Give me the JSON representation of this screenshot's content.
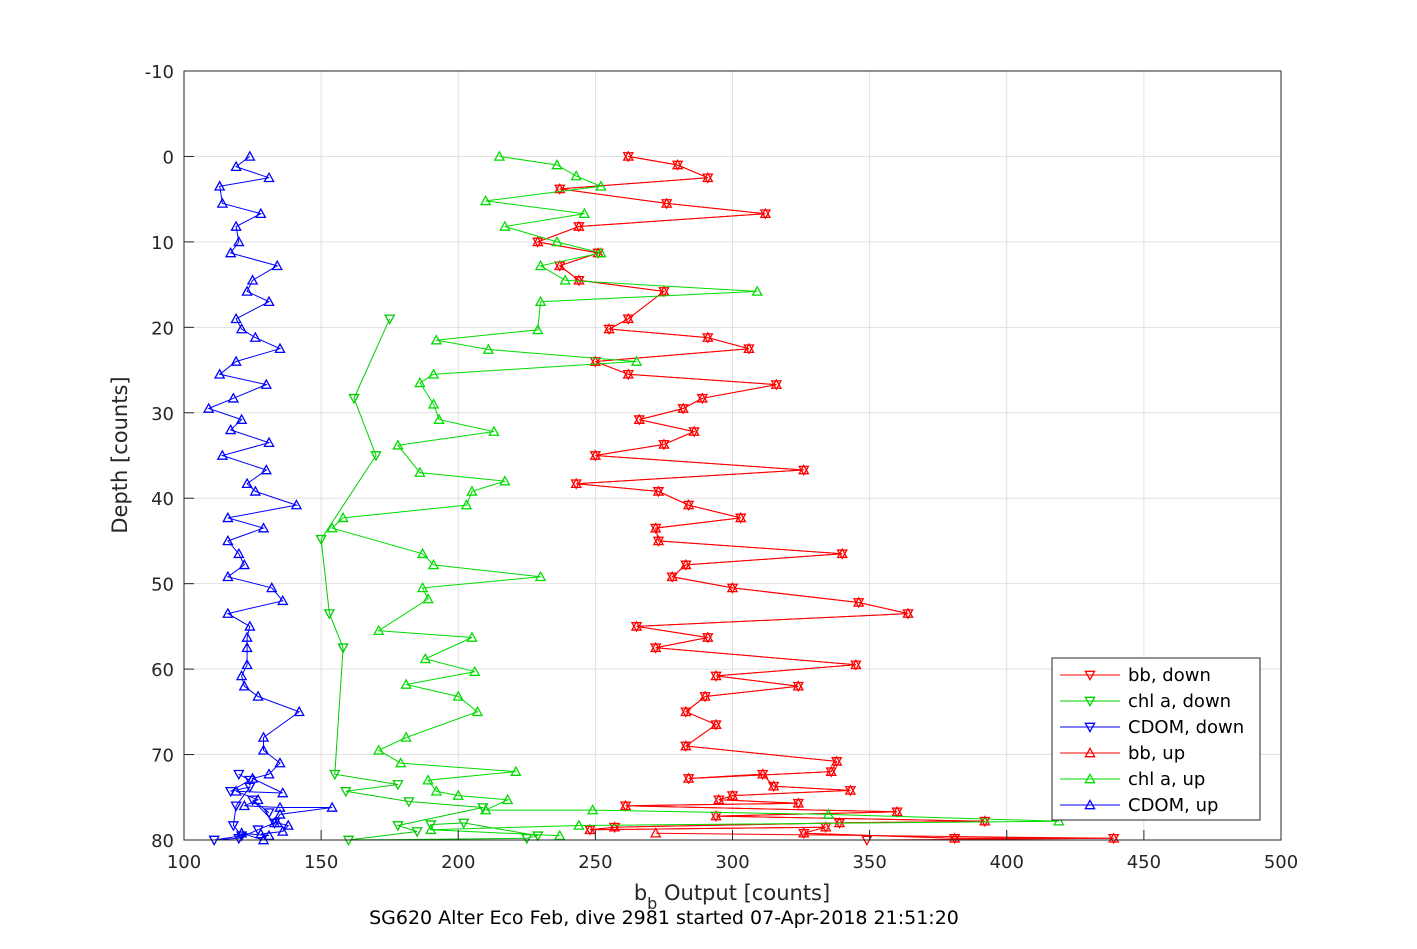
{
  "chart_data": {
    "type": "line",
    "title": "",
    "xlabel": {
      "main": "b",
      "sub": "b",
      "rest": " Output [counts]"
    },
    "ylabel": "Depth [counts]",
    "footer": "SG620 Alter Eco Feb, dive 2981 started 07-Apr-2018 21:51:20",
    "xlim": [
      100,
      500
    ],
    "ylim": [
      -10,
      80
    ],
    "y_reversed": true,
    "grid": true,
    "legend_position": "bottom-right",
    "x_ticks": [
      "100",
      "150",
      "200",
      "250",
      "300",
      "350",
      "400",
      "450",
      "500"
    ],
    "y_ticks": [
      "-10",
      "0",
      "10",
      "20",
      "30",
      "40",
      "50",
      "60",
      "70",
      "80"
    ],
    "series": [
      {
        "name": "bb, down",
        "color": "#ff0000",
        "marker": "triangle-down",
        "points": [
          [
            262,
            0
          ],
          [
            280,
            1
          ],
          [
            291,
            2.5
          ],
          [
            237,
            3.8
          ],
          [
            276,
            5.5
          ],
          [
            312,
            6.7
          ],
          [
            244,
            8.2
          ],
          [
            229,
            10
          ],
          [
            251,
            11.3
          ],
          [
            237,
            12.8
          ],
          [
            244,
            14.5
          ],
          [
            275,
            15.8
          ],
          [
            262,
            19
          ],
          [
            255,
            20.2
          ],
          [
            291,
            21.2
          ],
          [
            306,
            22.5
          ],
          [
            250,
            24
          ],
          [
            262,
            25.5
          ],
          [
            316,
            26.7
          ],
          [
            289,
            28.3
          ],
          [
            282,
            29.5
          ],
          [
            266,
            30.8
          ],
          [
            286,
            32.2
          ],
          [
            275,
            33.7
          ],
          [
            250,
            35
          ],
          [
            326,
            36.7
          ],
          [
            243,
            38.3
          ],
          [
            273,
            39.2
          ],
          [
            284,
            40.8
          ],
          [
            303,
            42.3
          ],
          [
            272,
            43.5
          ],
          [
            273,
            45
          ],
          [
            340,
            46.5
          ],
          [
            283,
            47.8
          ],
          [
            278,
            49.2
          ],
          [
            300,
            50.5
          ],
          [
            346,
            52.2
          ],
          [
            364,
            53.5
          ],
          [
            265,
            55
          ],
          [
            291,
            56.3
          ],
          [
            272,
            57.5
          ],
          [
            345,
            59.5
          ],
          [
            294,
            60.8
          ],
          [
            324,
            62
          ],
          [
            290,
            63.2
          ],
          [
            283,
            65
          ],
          [
            294,
            66.5
          ],
          [
            283,
            69
          ],
          [
            338,
            70.8
          ],
          [
            336,
            72
          ],
          [
            284,
            72.8
          ],
          [
            311,
            72.3
          ],
          [
            315,
            73.7
          ],
          [
            343,
            74.2
          ],
          [
            300,
            74.8
          ],
          [
            295,
            75.3
          ],
          [
            324,
            75.7
          ],
          [
            261,
            76
          ],
          [
            360,
            76.7
          ],
          [
            294,
            77.2
          ],
          [
            392,
            77.8
          ],
          [
            339,
            78
          ],
          [
            257,
            78.5
          ],
          [
            248,
            78.8
          ],
          [
            334,
            78.5
          ],
          [
            326,
            79.2
          ],
          [
            381,
            79.8
          ],
          [
            439,
            79.8
          ],
          [
            349,
            80
          ]
        ]
      },
      {
        "name": "chl a, down",
        "color": "#00cc00",
        "marker": "triangle-down",
        "points": [
          [
            175,
            19
          ],
          [
            162,
            28.3
          ],
          [
            170,
            35
          ],
          [
            150,
            44.8
          ],
          [
            153,
            53.5
          ],
          [
            158,
            57.5
          ],
          [
            155,
            72.3
          ],
          [
            178,
            73.5
          ],
          [
            159,
            74.3
          ],
          [
            182,
            75.5
          ],
          [
            209,
            76.2
          ],
          [
            178,
            78.3
          ],
          [
            185,
            79
          ],
          [
            160,
            80
          ],
          [
            225,
            79.8
          ],
          [
            229,
            79.5
          ],
          [
            202,
            78
          ],
          [
            190,
            78.2
          ]
        ]
      },
      {
        "name": "CDOM, down",
        "color": "#0000ff",
        "marker": "triangle-down",
        "points": [
          [
            120,
            72.3
          ],
          [
            124,
            73
          ],
          [
            117,
            74.3
          ],
          [
            124,
            73.8
          ],
          [
            119,
            76
          ],
          [
            118,
            78.3
          ],
          [
            121,
            79.5
          ],
          [
            111,
            80
          ],
          [
            120,
            79.8
          ],
          [
            127,
            78.8
          ],
          [
            133,
            78
          ],
          [
            125,
            75.3
          ],
          [
            131,
            76.8
          ]
        ]
      },
      {
        "name": "bb, up",
        "color": "#ff0000",
        "marker": "triangle-up",
        "points": [
          [
            262,
            0
          ],
          [
            280,
            1
          ],
          [
            291,
            2.5
          ],
          [
            237,
            3.8
          ],
          [
            276,
            5.5
          ],
          [
            312,
            6.7
          ],
          [
            244,
            8.2
          ],
          [
            229,
            10
          ],
          [
            251,
            11.3
          ],
          [
            237,
            12.8
          ],
          [
            244,
            14.5
          ],
          [
            275,
            15.8
          ],
          [
            262,
            19
          ],
          [
            255,
            20.2
          ],
          [
            291,
            21.2
          ],
          [
            306,
            22.5
          ],
          [
            250,
            24
          ],
          [
            262,
            25.5
          ],
          [
            316,
            26.7
          ],
          [
            289,
            28.3
          ],
          [
            282,
            29.5
          ],
          [
            266,
            30.8
          ],
          [
            286,
            32.2
          ],
          [
            275,
            33.7
          ],
          [
            250,
            35
          ],
          [
            326,
            36.7
          ],
          [
            243,
            38.3
          ],
          [
            273,
            39.2
          ],
          [
            284,
            40.8
          ],
          [
            303,
            42.3
          ],
          [
            272,
            43.5
          ],
          [
            273,
            45
          ],
          [
            340,
            46.5
          ],
          [
            283,
            47.8
          ],
          [
            278,
            49.2
          ],
          [
            300,
            50.5
          ],
          [
            346,
            52.2
          ],
          [
            364,
            53.5
          ],
          [
            265,
            55
          ],
          [
            291,
            56.3
          ],
          [
            272,
            57.5
          ],
          [
            345,
            59.5
          ],
          [
            294,
            60.8
          ],
          [
            324,
            62
          ],
          [
            290,
            63.2
          ],
          [
            283,
            65
          ],
          [
            294,
            66.5
          ],
          [
            283,
            69
          ],
          [
            338,
            70.8
          ],
          [
            336,
            72
          ],
          [
            284,
            72.8
          ],
          [
            311,
            72.3
          ],
          [
            315,
            73.7
          ],
          [
            343,
            74.2
          ],
          [
            300,
            74.8
          ],
          [
            295,
            75.3
          ],
          [
            324,
            75.7
          ],
          [
            261,
            76
          ],
          [
            360,
            76.7
          ],
          [
            294,
            77.2
          ],
          [
            392,
            77.8
          ],
          [
            339,
            78
          ],
          [
            257,
            78.5
          ],
          [
            248,
            78.8
          ],
          [
            334,
            78.5
          ],
          [
            326,
            79.2
          ],
          [
            381,
            79.8
          ],
          [
            439,
            79.8
          ],
          [
            272,
            79.2
          ]
        ]
      },
      {
        "name": "chl a, up",
        "color": "#00dd00",
        "marker": "triangle-up",
        "points": [
          [
            215,
            0
          ],
          [
            236,
            1
          ],
          [
            243,
            2.3
          ],
          [
            252,
            3.5
          ],
          [
            210,
            5.2
          ],
          [
            246,
            6.7
          ],
          [
            217,
            8.2
          ],
          [
            236,
            10
          ],
          [
            252,
            11.3
          ],
          [
            230,
            12.8
          ],
          [
            239,
            14.5
          ],
          [
            309,
            15.8
          ],
          [
            230,
            17
          ],
          [
            229,
            20.3
          ],
          [
            192,
            21.5
          ],
          [
            211,
            22.6
          ],
          [
            265,
            24
          ],
          [
            191,
            25.5
          ],
          [
            186,
            26.5
          ],
          [
            191,
            29
          ],
          [
            193,
            30.8
          ],
          [
            213,
            32.2
          ],
          [
            178,
            33.8
          ],
          [
            186,
            37
          ],
          [
            217,
            38
          ],
          [
            205,
            39.2
          ],
          [
            203,
            40.8
          ],
          [
            158,
            42.3
          ],
          [
            154,
            43.5
          ],
          [
            187,
            46.5
          ],
          [
            191,
            47.8
          ],
          [
            230,
            49.2
          ],
          [
            187,
            50.5
          ],
          [
            189,
            51.8
          ],
          [
            171,
            55.5
          ],
          [
            205,
            56.3
          ],
          [
            188,
            58.8
          ],
          [
            206,
            60.3
          ],
          [
            181,
            61.8
          ],
          [
            200,
            63.2
          ],
          [
            207,
            65
          ],
          [
            181,
            68
          ],
          [
            171,
            69.5
          ],
          [
            179,
            71
          ],
          [
            221,
            72
          ],
          [
            189,
            73
          ],
          [
            192,
            74.3
          ],
          [
            200,
            74.8
          ],
          [
            218,
            75.3
          ],
          [
            210,
            76.5
          ],
          [
            249,
            76.5
          ],
          [
            335,
            77
          ],
          [
            419,
            77.8
          ],
          [
            244,
            78.3
          ],
          [
            190,
            78.8
          ],
          [
            237,
            79.5
          ]
        ]
      },
      {
        "name": "CDOM, up",
        "color": "#0000ff",
        "marker": "triangle-up",
        "points": [
          [
            124,
            0
          ],
          [
            119,
            1.2
          ],
          [
            131,
            2.5
          ],
          [
            113,
            3.5
          ],
          [
            114,
            5.5
          ],
          [
            128,
            6.7
          ],
          [
            119,
            8.2
          ],
          [
            120,
            10
          ],
          [
            117,
            11.3
          ],
          [
            134,
            12.8
          ],
          [
            125,
            14.5
          ],
          [
            123,
            15.8
          ],
          [
            131,
            17
          ],
          [
            119,
            19
          ],
          [
            121,
            20.2
          ],
          [
            126,
            21.2
          ],
          [
            135,
            22.5
          ],
          [
            119,
            24
          ],
          [
            113,
            25.5
          ],
          [
            130,
            26.7
          ],
          [
            118,
            28.3
          ],
          [
            109,
            29.5
          ],
          [
            121,
            30.8
          ],
          [
            117,
            32
          ],
          [
            131,
            33.5
          ],
          [
            114,
            35
          ],
          [
            130,
            36.7
          ],
          [
            123,
            38.3
          ],
          [
            126,
            39.2
          ],
          [
            141,
            40.8
          ],
          [
            116,
            42.3
          ],
          [
            129,
            43.5
          ],
          [
            116,
            45
          ],
          [
            120,
            46.5
          ],
          [
            122,
            47.8
          ],
          [
            116,
            49.2
          ],
          [
            132,
            50.5
          ],
          [
            136,
            52
          ],
          [
            116,
            53.5
          ],
          [
            124,
            55
          ],
          [
            123,
            56.3
          ],
          [
            123,
            57.5
          ],
          [
            123,
            59.5
          ],
          [
            121,
            60.8
          ],
          [
            122,
            62
          ],
          [
            127,
            63.2
          ],
          [
            142,
            65
          ],
          [
            129,
            68
          ],
          [
            129,
            69.5
          ],
          [
            135,
            71
          ],
          [
            131,
            72.3
          ],
          [
            125,
            72.8
          ],
          [
            136,
            74.5
          ],
          [
            119,
            74.3
          ],
          [
            127,
            75.3
          ],
          [
            122,
            76
          ],
          [
            135,
            76.2
          ],
          [
            154,
            76.2
          ],
          [
            135,
            77
          ],
          [
            133,
            78
          ],
          [
            134,
            78
          ],
          [
            138,
            78.3
          ],
          [
            136,
            79
          ],
          [
            128,
            79.3
          ],
          [
            131,
            79.5
          ],
          [
            121,
            79.2
          ],
          [
            129,
            80
          ]
        ]
      }
    ]
  }
}
